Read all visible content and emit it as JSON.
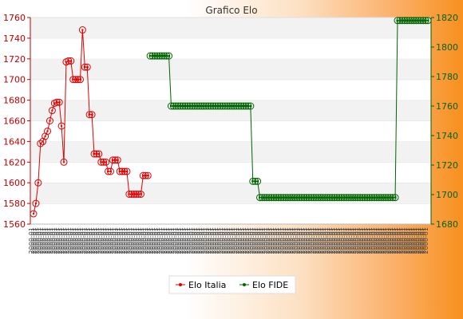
{
  "chart_data": {
    "type": "line",
    "title": "Grafico Elo",
    "xlabel": "",
    "ylabel": "",
    "ylim_left": [
      1560,
      1760
    ],
    "yticks_left": [
      1560,
      1580,
      1600,
      1620,
      1640,
      1660,
      1680,
      1700,
      1720,
      1740,
      1760
    ],
    "ylim_right": [
      1680,
      1820
    ],
    "yticks_right": [
      1680,
      1700,
      1720,
      1740,
      1760,
      1780,
      1800,
      1820
    ],
    "grid": "horizontal bands",
    "legend_position": "bottom-center",
    "colors": {
      "italia": "#e00000",
      "fide": "#006400"
    },
    "series": [
      {
        "name": "Elo Italia",
        "axis": "left",
        "x": [
          0,
          1,
          2,
          3,
          4,
          5,
          6,
          7,
          8,
          9,
          10,
          11,
          12,
          13,
          14,
          15,
          16,
          17,
          18,
          19,
          20,
          21,
          22,
          23,
          24,
          25,
          26,
          27,
          28,
          29,
          30,
          31,
          32,
          33,
          34,
          35,
          36,
          37,
          38,
          39,
          40,
          41,
          42,
          43,
          44,
          45,
          46,
          47,
          48,
          49,
          50,
          51,
          52,
          53,
          54,
          55,
          56,
          57,
          58,
          59,
          60,
          61
        ],
        "values": [
          1570,
          1580,
          1600,
          1638,
          1640,
          1645,
          1650,
          1660,
          1670,
          1677,
          1678,
          1678,
          1655,
          1620,
          1717,
          1718,
          1718,
          1700,
          1700,
          1700,
          1700,
          1748,
          1712,
          1712,
          1666,
          1666,
          1628,
          1628,
          1628,
          1620,
          1620,
          1620,
          1611,
          1611,
          1622,
          1622,
          1622,
          1611,
          1611,
          1611,
          1611,
          1589,
          1589,
          1589,
          1589,
          1589,
          1589,
          1607,
          1607,
          1607,
          null,
          null,
          null,
          null,
          null,
          null,
          null,
          null,
          null,
          null,
          null,
          null
        ]
      },
      {
        "name": "Elo FIDE",
        "axis": "right",
        "x_start": 50,
        "segments": [
          {
            "from": 50,
            "to": 58,
            "value": 1794
          },
          {
            "from": 59,
            "to": 93,
            "value": 1760
          },
          {
            "from": 94,
            "to": 96,
            "value": 1709
          },
          {
            "from": 97,
            "to": 155,
            "value": 1698
          },
          {
            "from": 156,
            "to": 169,
            "value": 1818
          }
        ]
      }
    ],
    "x_count": 170,
    "x_tick_label": "2000-01"
  }
}
